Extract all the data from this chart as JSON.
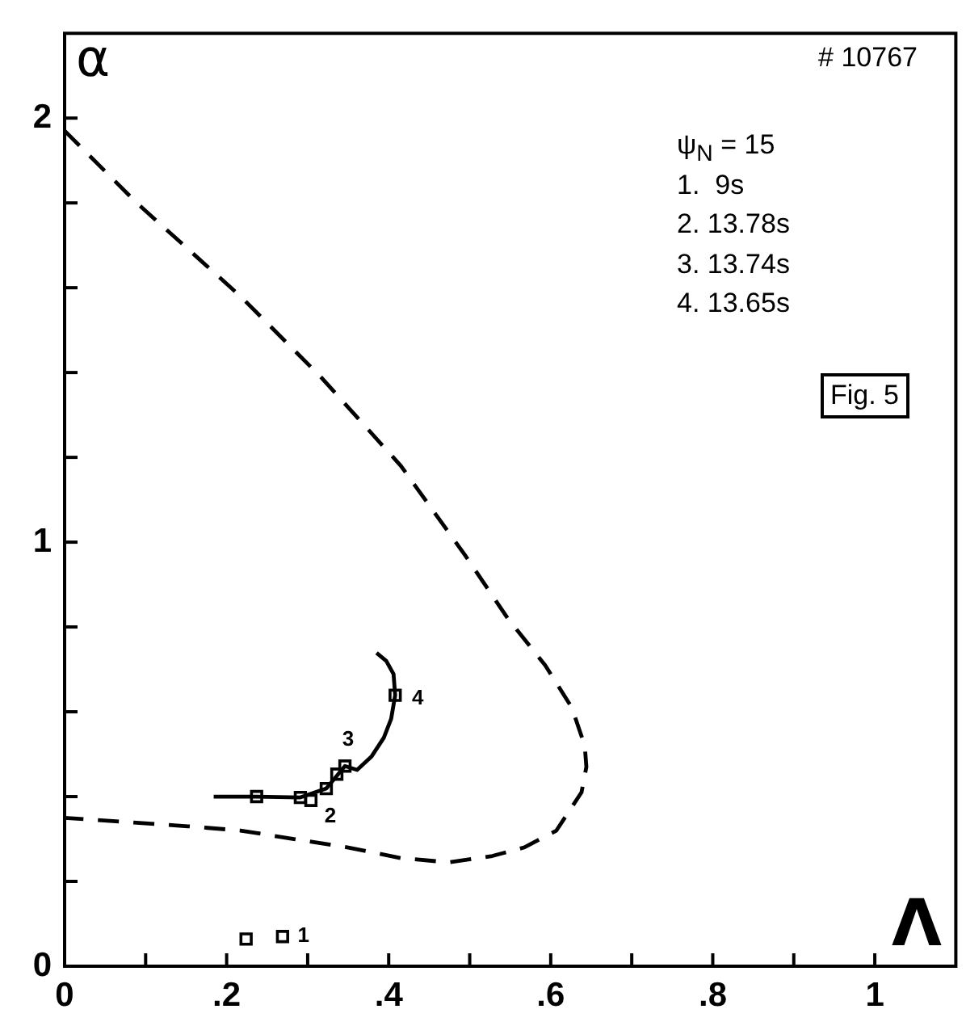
{
  "chart_data": {
    "type": "line",
    "xlabel": "Λ",
    "ylabel": "α",
    "xlim": [
      0,
      1.1
    ],
    "ylim": [
      0,
      2.2
    ],
    "xticks": [
      0,
      {
        "value": 0.1,
        "label": null
      },
      {
        "value": 0.2,
        "label": ".2"
      },
      {
        "value": 0.3,
        "label": null
      },
      {
        "value": 0.4,
        "label": ".4"
      },
      {
        "value": 0.5,
        "label": null
      },
      {
        "value": 0.6,
        "label": ".6"
      },
      {
        "value": 0.7,
        "label": null
      },
      {
        "value": 0.8,
        "label": ".8"
      },
      {
        "value": 0.9,
        "label": null
      },
      1
    ],
    "yticks": [
      0,
      {
        "value": 0.2,
        "label": null
      },
      {
        "value": 0.4,
        "label": null
      },
      {
        "value": 0.6,
        "label": null
      },
      {
        "value": 0.8,
        "label": null
      },
      1,
      {
        "value": 1.2,
        "label": null
      },
      {
        "value": 1.4,
        "label": null
      },
      {
        "value": 1.6,
        "label": null
      },
      {
        "value": 1.8,
        "label": null
      },
      2
    ],
    "series": [
      {
        "line_style": "dashed",
        "marker": "none",
        "color": "#000000",
        "x": [
          0,
          0.089,
          0.217,
          0.316,
          0.415,
          0.494,
          0.547,
          0.593,
          0.626,
          0.642,
          0.644,
          0.638,
          0.607,
          0.567,
          0.528,
          0.474,
          0.415,
          0.35,
          0.283,
          0.217,
          0.152,
          0
        ],
        "values": [
          1.97,
          1.8,
          1.58,
          1.39,
          1.18,
          0.97,
          0.82,
          0.71,
          0.61,
          0.52,
          0.47,
          0.41,
          0.32,
          0.28,
          0.26,
          0.245,
          0.255,
          0.28,
          0.3,
          0.32,
          0.33,
          0.35
        ]
      },
      {
        "line_style": "solid",
        "marker": "none",
        "color": "#000000",
        "x": [
          0.184,
          0.237,
          0.291,
          0.323,
          0.346,
          0.361,
          0.379,
          0.394,
          0.403,
          0.408,
          0.406,
          0.397,
          0.385
        ],
        "values": [
          0.4,
          0.4,
          0.398,
          0.419,
          0.472,
          0.463,
          0.495,
          0.539,
          0.583,
          0.639,
          0.689,
          0.72,
          0.739
        ]
      },
      {
        "type": "scatter",
        "marker": "square",
        "color": "#000000",
        "x": [
          0.224,
          0.269,
          0.237,
          0.291,
          0.304,
          0.323,
          0.336,
          0.346,
          0.408
        ],
        "values": [
          0.064,
          0.07,
          0.4,
          0.398,
          0.391,
          0.419,
          0.453,
          0.472,
          0.639
        ]
      }
    ],
    "annotations": [
      "# 10767",
      "ψ$_{N}$ = 15",
      "1.  9s",
      "2. 13.78s",
      "3. 13.74s",
      "4. 13.65s",
      "Fig. 5",
      {
        "text": "1",
        "x": 0.269,
        "y": 0.07
      },
      {
        "text": "2",
        "x": 0.304,
        "y": 0.391
      },
      {
        "text": "3",
        "x": 0.346,
        "y": 0.472
      },
      {
        "text": "4",
        "x": 0.408,
        "y": 0.639
      }
    ]
  }
}
